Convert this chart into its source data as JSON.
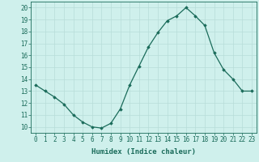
{
  "x": [
    0,
    1,
    2,
    3,
    4,
    5,
    6,
    7,
    8,
    9,
    10,
    11,
    12,
    13,
    14,
    15,
    16,
    17,
    18,
    19,
    20,
    21,
    22,
    23
  ],
  "y": [
    13.5,
    13.0,
    12.5,
    11.9,
    11.0,
    10.4,
    10.0,
    9.9,
    10.3,
    11.5,
    13.5,
    15.1,
    16.7,
    17.9,
    18.9,
    19.3,
    20.0,
    19.3,
    18.5,
    16.2,
    14.8,
    14.0,
    13.0,
    13.0
  ],
  "line_color": "#1a6b5a",
  "marker": "D",
  "marker_size": 1.8,
  "bg_color": "#cff0ec",
  "grid_color": "#b8ddd8",
  "xlabel": "Humidex (Indice chaleur)",
  "ylabel": "",
  "xlim": [
    -0.5,
    23.5
  ],
  "ylim": [
    9.5,
    20.5
  ],
  "yticks": [
    10,
    11,
    12,
    13,
    14,
    15,
    16,
    17,
    18,
    19,
    20
  ],
  "xticks": [
    0,
    1,
    2,
    3,
    4,
    5,
    6,
    7,
    8,
    9,
    10,
    11,
    12,
    13,
    14,
    15,
    16,
    17,
    18,
    19,
    20,
    21,
    22,
    23
  ],
  "tick_color": "#1a6b5a",
  "xlabel_fontsize": 6.5,
  "tick_fontsize": 5.5,
  "linewidth": 0.9
}
